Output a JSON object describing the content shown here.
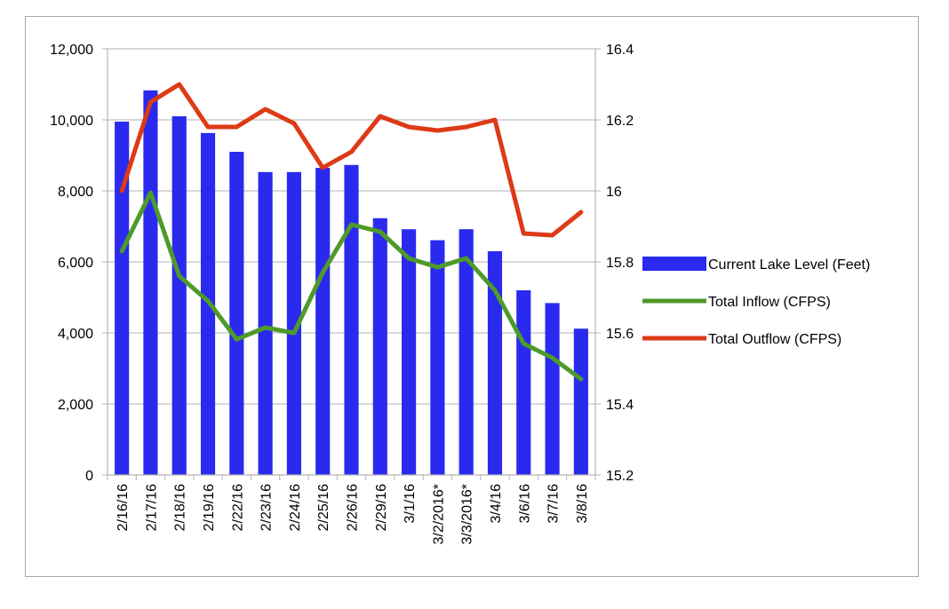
{
  "chart_data": {
    "type": "bar",
    "categories": [
      "2/16/16",
      "2/17/16",
      "2/18/16",
      "2/19/16",
      "2/22/16",
      "2/23/16",
      "2/24/16",
      "2/25/16",
      "2/26/16",
      "2/29/16",
      "3/1/16",
      "3/2/2016*",
      "3/3/2016*",
      "3/4/16",
      "3/6/16",
      "3/7/16",
      "3/8/16"
    ],
    "left_axis": {
      "ylim": [
        0,
        12000
      ],
      "ticks": [
        "0",
        "2,000",
        "4,000",
        "6,000",
        "8,000",
        "10,000",
        "12,000"
      ],
      "tick_values": [
        0,
        2000,
        4000,
        6000,
        8000,
        10000,
        12000
      ]
    },
    "right_axis": {
      "ylim": [
        15.2,
        16.4
      ],
      "ticks": [
        "15.2",
        "15.4",
        "15.6",
        "15.8",
        "16",
        "16.2",
        "16.4"
      ],
      "tick_values": [
        15.2,
        15.4,
        15.6,
        15.8,
        16.0,
        16.2,
        16.4
      ]
    },
    "series": [
      {
        "name": "Current Lake Level (Feet)",
        "kind": "bar",
        "axis": "left",
        "color": "#2a2aee",
        "values": [
          9950,
          10830,
          10100,
          9630,
          9100,
          8530,
          8530,
          8650,
          8730,
          7230,
          6920,
          6610,
          6920,
          6300,
          5200,
          4840,
          4120
        ]
      },
      {
        "name": "Total Inflow (CFPS)",
        "kind": "line",
        "axis": "left",
        "color": "#4e9a2a",
        "values": [
          6300,
          7950,
          5600,
          4900,
          3820,
          4150,
          4000,
          5700,
          7050,
          6850,
          6100,
          5850,
          6100,
          5200,
          3700,
          3300,
          2700
        ]
      },
      {
        "name": "Total Outflow (CFPS)",
        "kind": "line",
        "axis": "left",
        "color": "#dd3a16",
        "values": [
          8000,
          10500,
          11000,
          9800,
          9800,
          10300,
          9900,
          8650,
          9100,
          10100,
          9800,
          9700,
          9800,
          10000,
          6800,
          6750,
          7400
        ]
      }
    ],
    "grid": true,
    "legend": "right"
  }
}
